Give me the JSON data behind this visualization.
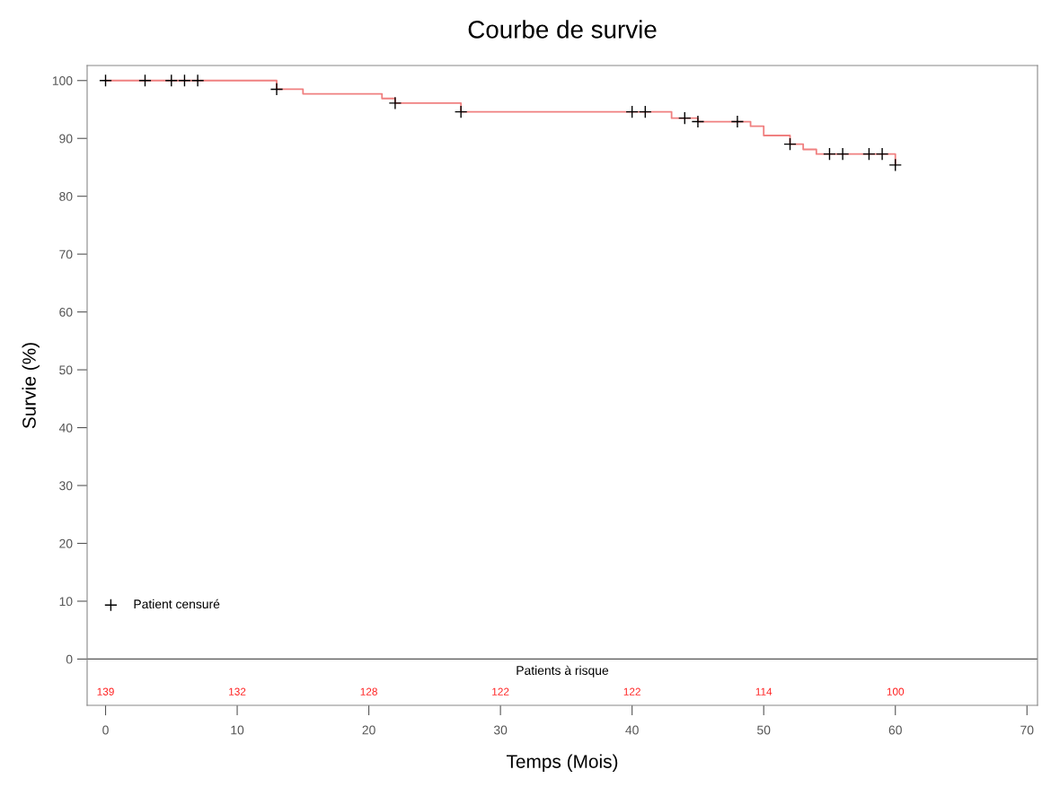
{
  "chart_data": {
    "type": "step",
    "title": "Courbe de survie",
    "xlabel": "Temps (Mois)",
    "ylabel": "Survie (%)",
    "series": [
      {
        "color": "#f08080",
        "x": [
          0,
          13,
          15,
          21,
          22,
          27,
          43,
          45,
          49,
          50,
          52,
          53,
          54,
          60,
          60
        ],
        "values": [
          100,
          98.5,
          97.7,
          96.9,
          96.1,
          94.6,
          93.5,
          92.9,
          92.1,
          90.5,
          89.0,
          88.1,
          87.3,
          87.3,
          85.4
        ]
      },
      {
        "type": "scatter",
        "name": "Patient censuré",
        "color": "#000000",
        "marker": "cross",
        "x": [
          0,
          3,
          5,
          6,
          7,
          13,
          22,
          27,
          40,
          41,
          44,
          45,
          48,
          52,
          55,
          56,
          58,
          59,
          60
        ],
        "values": [
          100,
          100,
          100,
          100,
          100,
          98.5,
          96.1,
          94.6,
          94.6,
          94.6,
          93.5,
          92.9,
          92.9,
          89.0,
          87.3,
          87.3,
          87.3,
          87.3,
          85.4
        ]
      }
    ],
    "xlim": [
      -1.4,
      70.8
    ],
    "xticks": [
      0,
      10,
      20,
      30,
      40,
      50,
      60,
      70
    ],
    "ylim": [
      -8,
      102.6
    ],
    "yticks": [
      0,
      10,
      20,
      30,
      40,
      50,
      60,
      70,
      80,
      90,
      100
    ],
    "ref_lines": [
      {
        "axis": "y",
        "value": 0,
        "color": "#555555"
      }
    ],
    "annotations": [
      "Patients à risque",
      "139",
      "132",
      "128",
      "122",
      "122",
      "114",
      "100"
    ],
    "grid": false,
    "legend": "bottom left"
  }
}
